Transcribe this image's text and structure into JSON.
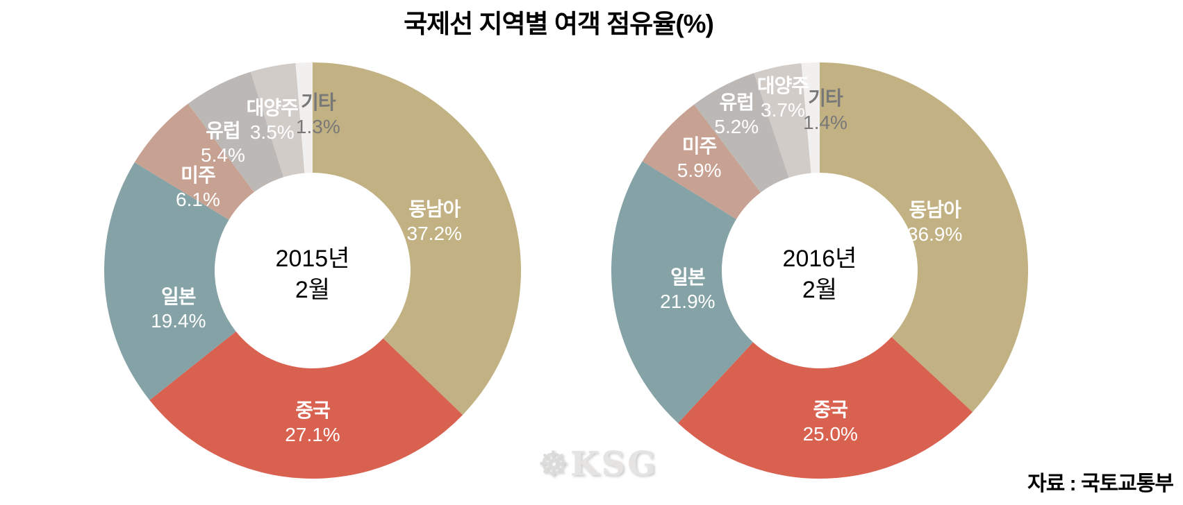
{
  "title": "국제선 지역별 여객 점유율(%)",
  "source": "자료 : 국토교통부",
  "watermark": {
    "text": "KSG",
    "icon": "ship-wheel"
  },
  "chart_data": [
    {
      "type": "pie",
      "subtype": "donut",
      "center_label_line1": "2015년",
      "center_label_line2": "2월",
      "unit": "%",
      "start_angle_deg": 0,
      "direction": "clockwise",
      "inner_radius_ratio": 0.47,
      "slices": [
        {
          "label": "동남아",
          "value": 37.2,
          "color": "#c2b283",
          "label_color": "#ffffff",
          "label_angle": 68,
          "label_r": 0.63
        },
        {
          "label": "중국",
          "value": 27.1,
          "color": "#d96150",
          "label_color": "#ffffff",
          "label_angle": 180,
          "label_r": 0.73
        },
        {
          "label": "일본",
          "value": 19.4,
          "color": "#85a3a6",
          "label_color": "#ffffff",
          "label_angle": 254,
          "label_r": 0.67
        },
        {
          "label": "미주",
          "value": 6.1,
          "color": "#c7a192",
          "label_color": "#ffffff",
          "label_angle": 306,
          "label_r": 0.68
        },
        {
          "label": "유럽",
          "value": 5.4,
          "color": "#bcb8b5",
          "label_color": "#ffffff",
          "label_angle": 325,
          "label_r": 0.75
        },
        {
          "label": "대양주",
          "value": 3.5,
          "color": "#d2ccc8",
          "label_color": "#ffffff",
          "label_angle": 345,
          "label_r": 0.75
        },
        {
          "label": "기타",
          "value": 1.3,
          "color": "#f2f0ee",
          "label_color": "#787878",
          "label_angle": 2,
          "label_r": 0.75
        }
      ]
    },
    {
      "type": "pie",
      "subtype": "donut",
      "center_label_line1": "2016년",
      "center_label_line2": "2월",
      "unit": "%",
      "start_angle_deg": 0,
      "direction": "clockwise",
      "inner_radius_ratio": 0.47,
      "slices": [
        {
          "label": "동남아",
          "value": 36.9,
          "color": "#c2b283",
          "label_color": "#ffffff",
          "label_angle": 67,
          "label_r": 0.6
        },
        {
          "label": "중국",
          "value": 25.0,
          "color": "#d96150",
          "label_color": "#ffffff",
          "label_angle": 176,
          "label_r": 0.73
        },
        {
          "label": "일본",
          "value": 21.9,
          "color": "#85a3a6",
          "label_color": "#ffffff",
          "label_angle": 262,
          "label_r": 0.64
        },
        {
          "label": "미주",
          "value": 5.9,
          "color": "#c7a192",
          "label_color": "#ffffff",
          "label_angle": 313,
          "label_r": 0.79
        },
        {
          "label": "유럽",
          "value": 5.2,
          "color": "#bcb8b5",
          "label_color": "#ffffff",
          "label_angle": 332,
          "label_r": 0.85
        },
        {
          "label": "대양주",
          "value": 3.7,
          "color": "#d2ccc8",
          "label_color": "#ffffff",
          "label_angle": 348,
          "label_r": 0.85
        },
        {
          "label": "기타",
          "value": 1.4,
          "color": "#f2f0ee",
          "label_color": "#787878",
          "label_angle": 2,
          "label_r": 0.77
        }
      ]
    }
  ]
}
